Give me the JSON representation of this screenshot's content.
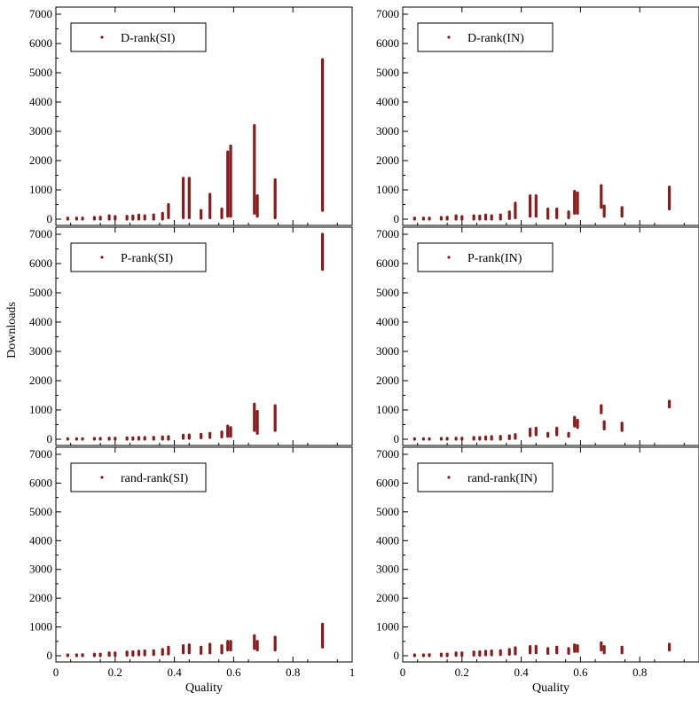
{
  "figure": {
    "ylabel": "Downloads",
    "xlabel": "Quality",
    "marker_color": "#8b1a1a"
  },
  "chart_data": [
    {
      "type": "scatter",
      "panel": "top-left",
      "legend": "D-rank(SI)",
      "legend_position": "top-left",
      "xlim": [
        0,
        1
      ],
      "ylim": [
        0,
        7000
      ],
      "yticks": [
        0,
        1000,
        2000,
        3000,
        4000,
        5000,
        6000,
        7000
      ],
      "xticks": [],
      "xticklabels": [],
      "points": [
        {
          "x": 0.04,
          "lo": 0,
          "hi": 40
        },
        {
          "x": 0.07,
          "lo": 0,
          "hi": 40
        },
        {
          "x": 0.09,
          "lo": 0,
          "hi": 40
        },
        {
          "x": 0.13,
          "lo": 0,
          "hi": 60
        },
        {
          "x": 0.15,
          "lo": 0,
          "hi": 70
        },
        {
          "x": 0.18,
          "lo": 0,
          "hi": 120
        },
        {
          "x": 0.2,
          "lo": 0,
          "hi": 90
        },
        {
          "x": 0.24,
          "lo": 0,
          "hi": 100
        },
        {
          "x": 0.26,
          "lo": 0,
          "hi": 110
        },
        {
          "x": 0.28,
          "lo": 0,
          "hi": 140
        },
        {
          "x": 0.3,
          "lo": 0,
          "hi": 120
        },
        {
          "x": 0.33,
          "lo": 0,
          "hi": 150
        },
        {
          "x": 0.36,
          "lo": 0,
          "hi": 200
        },
        {
          "x": 0.38,
          "lo": 50,
          "hi": 500
        },
        {
          "x": 0.43,
          "lo": 50,
          "hi": 1400
        },
        {
          "x": 0.45,
          "lo": 50,
          "hi": 1400
        },
        {
          "x": 0.49,
          "lo": 30,
          "hi": 300
        },
        {
          "x": 0.52,
          "lo": 50,
          "hi": 850
        },
        {
          "x": 0.56,
          "lo": 50,
          "hi": 350
        },
        {
          "x": 0.58,
          "lo": 100,
          "hi": 2300
        },
        {
          "x": 0.59,
          "lo": 100,
          "hi": 2500
        },
        {
          "x": 0.67,
          "lo": 200,
          "hi": 3200
        },
        {
          "x": 0.68,
          "lo": 100,
          "hi": 800
        },
        {
          "x": 0.74,
          "lo": 50,
          "hi": 1350
        },
        {
          "x": 0.9,
          "lo": 300,
          "hi": 5450
        }
      ]
    },
    {
      "type": "scatter",
      "panel": "top-right",
      "legend": "D-rank(IN)",
      "legend_position": "top-left",
      "xlim": [
        0,
        1
      ],
      "ylim": [
        0,
        7000
      ],
      "yticks": [
        0,
        1000,
        2000,
        3000,
        4000,
        5000,
        6000,
        7000
      ],
      "xticks": [],
      "xticklabels": [],
      "points": [
        {
          "x": 0.04,
          "lo": 0,
          "hi": 40
        },
        {
          "x": 0.07,
          "lo": 0,
          "hi": 40
        },
        {
          "x": 0.09,
          "lo": 0,
          "hi": 40
        },
        {
          "x": 0.13,
          "lo": 0,
          "hi": 60
        },
        {
          "x": 0.15,
          "lo": 0,
          "hi": 70
        },
        {
          "x": 0.18,
          "lo": 0,
          "hi": 120
        },
        {
          "x": 0.2,
          "lo": 0,
          "hi": 90
        },
        {
          "x": 0.24,
          "lo": 0,
          "hi": 120
        },
        {
          "x": 0.26,
          "lo": 0,
          "hi": 110
        },
        {
          "x": 0.28,
          "lo": 0,
          "hi": 140
        },
        {
          "x": 0.3,
          "lo": 0,
          "hi": 120
        },
        {
          "x": 0.33,
          "lo": 0,
          "hi": 150
        },
        {
          "x": 0.36,
          "lo": 20,
          "hi": 250
        },
        {
          "x": 0.38,
          "lo": 50,
          "hi": 550
        },
        {
          "x": 0.43,
          "lo": 100,
          "hi": 800
        },
        {
          "x": 0.45,
          "lo": 100,
          "hi": 800
        },
        {
          "x": 0.49,
          "lo": 30,
          "hi": 350
        },
        {
          "x": 0.52,
          "lo": 50,
          "hi": 350
        },
        {
          "x": 0.56,
          "lo": 50,
          "hi": 250
        },
        {
          "x": 0.58,
          "lo": 200,
          "hi": 950
        },
        {
          "x": 0.59,
          "lo": 200,
          "hi": 900
        },
        {
          "x": 0.67,
          "lo": 400,
          "hi": 1150
        },
        {
          "x": 0.68,
          "lo": 100,
          "hi": 450
        },
        {
          "x": 0.74,
          "lo": 100,
          "hi": 400
        },
        {
          "x": 0.9,
          "lo": 350,
          "hi": 1100
        }
      ]
    },
    {
      "type": "scatter",
      "panel": "middle-left",
      "legend": "P-rank(SI)",
      "legend_position": "top-left",
      "xlim": [
        0,
        1
      ],
      "ylim": [
        0,
        7000
      ],
      "yticks": [
        0,
        1000,
        2000,
        3000,
        4000,
        5000,
        6000,
        7000
      ],
      "xticks": [],
      "xticklabels": [],
      "points": [
        {
          "x": 0.04,
          "lo": 0,
          "hi": 20
        },
        {
          "x": 0.07,
          "lo": 0,
          "hi": 20
        },
        {
          "x": 0.09,
          "lo": 0,
          "hi": 20
        },
        {
          "x": 0.13,
          "lo": 0,
          "hi": 30
        },
        {
          "x": 0.15,
          "lo": 0,
          "hi": 30
        },
        {
          "x": 0.18,
          "lo": 0,
          "hi": 40
        },
        {
          "x": 0.2,
          "lo": 0,
          "hi": 40
        },
        {
          "x": 0.24,
          "lo": 0,
          "hi": 50
        },
        {
          "x": 0.26,
          "lo": 0,
          "hi": 50
        },
        {
          "x": 0.28,
          "lo": 0,
          "hi": 60
        },
        {
          "x": 0.3,
          "lo": 0,
          "hi": 60
        },
        {
          "x": 0.33,
          "lo": 0,
          "hi": 70
        },
        {
          "x": 0.36,
          "lo": 0,
          "hi": 80
        },
        {
          "x": 0.38,
          "lo": 0,
          "hi": 90
        },
        {
          "x": 0.43,
          "lo": 30,
          "hi": 140
        },
        {
          "x": 0.45,
          "lo": 30,
          "hi": 150
        },
        {
          "x": 0.49,
          "lo": 50,
          "hi": 170
        },
        {
          "x": 0.52,
          "lo": 60,
          "hi": 200
        },
        {
          "x": 0.56,
          "lo": 80,
          "hi": 250
        },
        {
          "x": 0.58,
          "lo": 100,
          "hi": 450
        },
        {
          "x": 0.59,
          "lo": 100,
          "hi": 400
        },
        {
          "x": 0.67,
          "lo": 300,
          "hi": 1200
        },
        {
          "x": 0.68,
          "lo": 200,
          "hi": 950
        },
        {
          "x": 0.74,
          "lo": 300,
          "hi": 1150
        },
        {
          "x": 0.9,
          "lo": 5800,
          "hi": 7000
        }
      ]
    },
    {
      "type": "scatter",
      "panel": "middle-right",
      "legend": "P-rank(IN)",
      "legend_position": "top-left",
      "xlim": [
        0,
        1
      ],
      "ylim": [
        0,
        7000
      ],
      "yticks": [
        0,
        1000,
        2000,
        3000,
        4000,
        5000,
        6000,
        7000
      ],
      "xticks": [],
      "xticklabels": [],
      "points": [
        {
          "x": 0.04,
          "lo": 0,
          "hi": 20
        },
        {
          "x": 0.07,
          "lo": 0,
          "hi": 20
        },
        {
          "x": 0.09,
          "lo": 0,
          "hi": 20
        },
        {
          "x": 0.13,
          "lo": 0,
          "hi": 30
        },
        {
          "x": 0.15,
          "lo": 0,
          "hi": 30
        },
        {
          "x": 0.18,
          "lo": 0,
          "hi": 40
        },
        {
          "x": 0.2,
          "lo": 0,
          "hi": 40
        },
        {
          "x": 0.24,
          "lo": 0,
          "hi": 60
        },
        {
          "x": 0.26,
          "lo": 0,
          "hi": 60
        },
        {
          "x": 0.28,
          "lo": 0,
          "hi": 80
        },
        {
          "x": 0.3,
          "lo": 0,
          "hi": 90
        },
        {
          "x": 0.33,
          "lo": 0,
          "hi": 100
        },
        {
          "x": 0.36,
          "lo": 20,
          "hi": 120
        },
        {
          "x": 0.38,
          "lo": 30,
          "hi": 160
        },
        {
          "x": 0.43,
          "lo": 120,
          "hi": 350
        },
        {
          "x": 0.45,
          "lo": 150,
          "hi": 380
        },
        {
          "x": 0.49,
          "lo": 100,
          "hi": 200
        },
        {
          "x": 0.52,
          "lo": 150,
          "hi": 380
        },
        {
          "x": 0.56,
          "lo": 100,
          "hi": 200
        },
        {
          "x": 0.58,
          "lo": 450,
          "hi": 750
        },
        {
          "x": 0.59,
          "lo": 400,
          "hi": 650
        },
        {
          "x": 0.67,
          "lo": 900,
          "hi": 1150
        },
        {
          "x": 0.68,
          "lo": 350,
          "hi": 600
        },
        {
          "x": 0.74,
          "lo": 300,
          "hi": 550
        },
        {
          "x": 0.9,
          "lo": 1100,
          "hi": 1300
        }
      ]
    },
    {
      "type": "scatter",
      "panel": "bottom-left",
      "legend": "rand-rank(SI)",
      "legend_position": "top-left",
      "xlim": [
        0,
        1
      ],
      "ylim": [
        0,
        7000
      ],
      "yticks": [
        0,
        1000,
        2000,
        3000,
        4000,
        5000,
        6000,
        7000
      ],
      "xticks": [
        0,
        0.2,
        0.4,
        0.6,
        0.8,
        1
      ],
      "xticklabels": [
        "0",
        "0.2",
        "0.4",
        "0.6",
        "0.8",
        "1"
      ],
      "points": [
        {
          "x": 0.04,
          "lo": 0,
          "hi": 30
        },
        {
          "x": 0.07,
          "lo": 0,
          "hi": 30
        },
        {
          "x": 0.09,
          "lo": 0,
          "hi": 40
        },
        {
          "x": 0.13,
          "lo": 0,
          "hi": 60
        },
        {
          "x": 0.15,
          "lo": 0,
          "hi": 60
        },
        {
          "x": 0.18,
          "lo": 10,
          "hi": 100
        },
        {
          "x": 0.2,
          "lo": 10,
          "hi": 100
        },
        {
          "x": 0.24,
          "lo": 20,
          "hi": 130
        },
        {
          "x": 0.26,
          "lo": 20,
          "hi": 140
        },
        {
          "x": 0.28,
          "lo": 30,
          "hi": 160
        },
        {
          "x": 0.3,
          "lo": 30,
          "hi": 170
        },
        {
          "x": 0.33,
          "lo": 40,
          "hi": 180
        },
        {
          "x": 0.36,
          "lo": 50,
          "hi": 220
        },
        {
          "x": 0.38,
          "lo": 60,
          "hi": 300
        },
        {
          "x": 0.43,
          "lo": 100,
          "hi": 350
        },
        {
          "x": 0.45,
          "lo": 100,
          "hi": 380
        },
        {
          "x": 0.49,
          "lo": 80,
          "hi": 300
        },
        {
          "x": 0.52,
          "lo": 100,
          "hi": 400
        },
        {
          "x": 0.56,
          "lo": 100,
          "hi": 350
        },
        {
          "x": 0.58,
          "lo": 200,
          "hi": 500
        },
        {
          "x": 0.59,
          "lo": 200,
          "hi": 500
        },
        {
          "x": 0.67,
          "lo": 250,
          "hi": 700
        },
        {
          "x": 0.68,
          "lo": 200,
          "hi": 500
        },
        {
          "x": 0.74,
          "lo": 200,
          "hi": 650
        },
        {
          "x": 0.9,
          "lo": 300,
          "hi": 1100
        }
      ]
    },
    {
      "type": "scatter",
      "panel": "bottom-right",
      "legend": "rand-rank(IN)",
      "legend_position": "top-left",
      "xlim": [
        0,
        1
      ],
      "ylim": [
        0,
        7000
      ],
      "yticks": [
        0,
        1000,
        2000,
        3000,
        4000,
        5000,
        6000,
        7000
      ],
      "xticks": [
        0,
        0.2,
        0.4,
        0.6,
        0.8
      ],
      "xticklabels": [
        "0",
        "0.2",
        "0.4",
        "0.6",
        "0.8"
      ],
      "points": [
        {
          "x": 0.04,
          "lo": 0,
          "hi": 30
        },
        {
          "x": 0.07,
          "lo": 0,
          "hi": 30
        },
        {
          "x": 0.09,
          "lo": 0,
          "hi": 40
        },
        {
          "x": 0.13,
          "lo": 0,
          "hi": 60
        },
        {
          "x": 0.15,
          "lo": 0,
          "hi": 60
        },
        {
          "x": 0.18,
          "lo": 10,
          "hi": 100
        },
        {
          "x": 0.2,
          "lo": 10,
          "hi": 100
        },
        {
          "x": 0.24,
          "lo": 20,
          "hi": 130
        },
        {
          "x": 0.26,
          "lo": 20,
          "hi": 140
        },
        {
          "x": 0.28,
          "lo": 30,
          "hi": 160
        },
        {
          "x": 0.3,
          "lo": 30,
          "hi": 170
        },
        {
          "x": 0.33,
          "lo": 40,
          "hi": 180
        },
        {
          "x": 0.36,
          "lo": 50,
          "hi": 220
        },
        {
          "x": 0.38,
          "lo": 60,
          "hi": 280
        },
        {
          "x": 0.43,
          "lo": 100,
          "hi": 320
        },
        {
          "x": 0.45,
          "lo": 100,
          "hi": 330
        },
        {
          "x": 0.49,
          "lo": 80,
          "hi": 250
        },
        {
          "x": 0.52,
          "lo": 100,
          "hi": 300
        },
        {
          "x": 0.56,
          "lo": 80,
          "hi": 250
        },
        {
          "x": 0.58,
          "lo": 150,
          "hi": 380
        },
        {
          "x": 0.59,
          "lo": 150,
          "hi": 350
        },
        {
          "x": 0.67,
          "lo": 200,
          "hi": 450
        },
        {
          "x": 0.68,
          "lo": 100,
          "hi": 320
        },
        {
          "x": 0.74,
          "lo": 100,
          "hi": 300
        },
        {
          "x": 0.9,
          "lo": 200,
          "hi": 400
        }
      ]
    }
  ]
}
